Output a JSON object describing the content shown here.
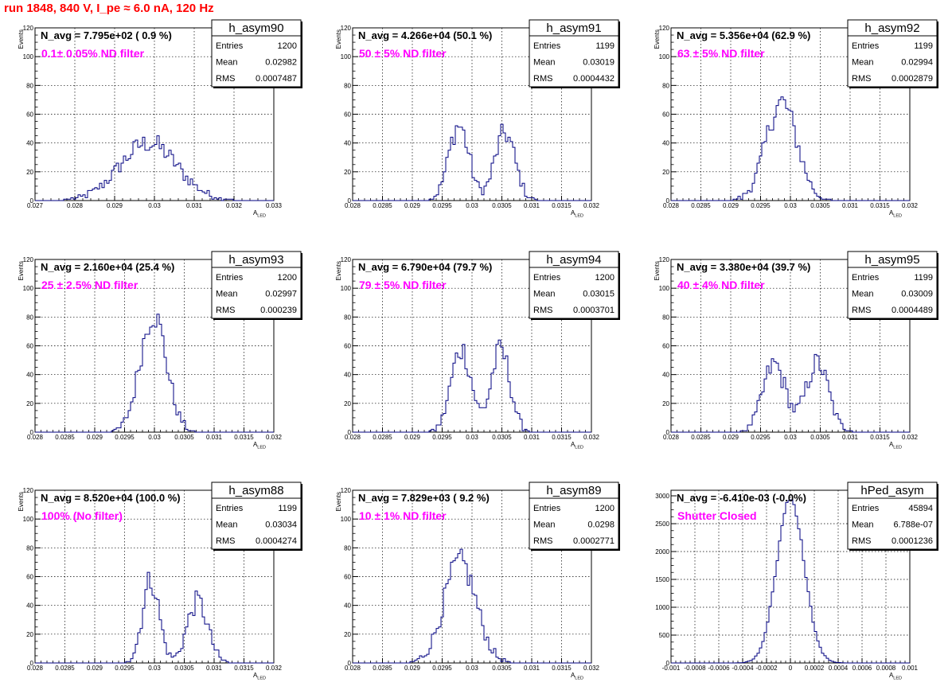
{
  "run_title": "run 1848,   840 V, I_pe ≈ 6.0 nA, 120 Hz",
  "colors": {
    "histogram": "#000080",
    "annotation": "#ff00ff",
    "title": "#ff0000",
    "grid": "#000000"
  },
  "chart_data": [
    {
      "type": "histogram",
      "name": "h_asym90",
      "navg": "N_avg = 7.795e+02 ( 0.9 %)",
      "filter": "0.1± 0.05% ND filter",
      "stats": {
        "Entries": "1200",
        "Mean": "0.02982",
        "RMS": "0.0007487"
      },
      "xlabel": "A",
      "xlabel_sub": "LED",
      "ylabel": "Events",
      "xlim": [
        0.027,
        0.033
      ],
      "ylim": [
        0,
        120
      ],
      "xticks": [
        0.027,
        0.028,
        0.029,
        0.03,
        0.031,
        0.032,
        0.033
      ],
      "xticklabels": [
        "0.027",
        "0.028",
        "0.029",
        "0.03",
        "0.031",
        "0.032",
        "0.033"
      ],
      "yticks": [
        0,
        20,
        40,
        60,
        80,
        100,
        120
      ],
      "yticklabels": [
        "0",
        "20",
        "40",
        "60",
        "80",
        "100",
        "120"
      ],
      "peaks": [
        {
          "mu": 0.02985,
          "sigma": 0.00072,
          "amp": 40
        }
      ],
      "entries": 1200
    },
    {
      "type": "histogram",
      "name": "h_asym91",
      "navg": "N_avg = 4.266e+04 (50.1 %)",
      "filter": " 50 ± 5% ND filter",
      "stats": {
        "Entries": "1199",
        "Mean": "0.03019",
        "RMS": "0.0004432"
      },
      "xlabel": "A",
      "xlabel_sub": "LED",
      "ylabel": "Events",
      "xlim": [
        0.028,
        0.032
      ],
      "ylim": [
        0,
        120
      ],
      "xticks": [
        0.028,
        0.0285,
        0.029,
        0.0295,
        0.03,
        0.0305,
        0.031,
        0.0315,
        0.032
      ],
      "xticklabels": [
        "0.028",
        "0.0285",
        "0.029",
        "0.0295",
        "0.03",
        "0.0305",
        "0.031",
        "0.0315",
        "0.032"
      ],
      "yticks": [
        0,
        20,
        40,
        60,
        80,
        100,
        120
      ],
      "yticklabels": [
        "0",
        "20",
        "40",
        "60",
        "80",
        "100",
        "120"
      ],
      "peaks": [
        {
          "mu": 0.02978,
          "sigma": 0.00017,
          "amp": 52
        },
        {
          "mu": 0.03055,
          "sigma": 0.00017,
          "amp": 47
        }
      ],
      "entries": 1199
    },
    {
      "type": "histogram",
      "name": "h_asym92",
      "navg": "N_avg = 5.356e+04 (62.9 %)",
      "filter": " 63 ± 5% ND filter",
      "stats": {
        "Entries": "1199",
        "Mean": "0.02994",
        "RMS": "0.0002879"
      },
      "xlabel": "A",
      "xlabel_sub": "LED",
      "ylabel": "Events",
      "xlim": [
        0.028,
        0.032
      ],
      "ylim": [
        0,
        120
      ],
      "xticks": [
        0.028,
        0.0285,
        0.029,
        0.0295,
        0.03,
        0.0305,
        0.031,
        0.0315,
        0.032
      ],
      "xticklabels": [
        "0.028",
        "0.0285",
        "0.029",
        "0.0295",
        "0.03",
        "0.0305",
        "0.031",
        "0.0315",
        "0.032"
      ],
      "yticks": [
        0,
        20,
        40,
        60,
        80,
        100,
        120
      ],
      "yticklabels": [
        "0",
        "20",
        "40",
        "60",
        "80",
        "100",
        "120"
      ],
      "peaks": [
        {
          "mu": 0.02985,
          "sigma": 0.00026,
          "amp": 68
        }
      ],
      "entries": 1199
    },
    {
      "type": "histogram",
      "name": "h_asym93",
      "navg": "N_avg = 2.160e+04 (25.4 %)",
      "filter": " 25 ± 2.5% ND filter",
      "stats": {
        "Entries": "1200",
        "Mean": "0.02997",
        "RMS": "0.000239"
      },
      "xlabel": "A",
      "xlabel_sub": "LED",
      "ylabel": "Events",
      "xlim": [
        0.028,
        0.032
      ],
      "ylim": [
        0,
        120
      ],
      "xticks": [
        0.028,
        0.0285,
        0.029,
        0.0295,
        0.03,
        0.0305,
        0.031,
        0.0315,
        0.032
      ],
      "xticklabels": [
        "0.028",
        "0.0285",
        "0.029",
        "0.0295",
        "0.03",
        "0.0305",
        "0.031",
        "0.0315",
        "0.032"
      ],
      "yticks": [
        0,
        20,
        40,
        60,
        80,
        100,
        120
      ],
      "yticklabels": [
        "0",
        "20",
        "40",
        "60",
        "80",
        "100",
        "120"
      ],
      "peaks": [
        {
          "mu": 0.02998,
          "sigma": 0.00022,
          "amp": 82
        }
      ],
      "entries": 1200
    },
    {
      "type": "histogram",
      "name": "h_asym94",
      "navg": "N_avg = 6.790e+04 (79.7 %)",
      "filter": " 79 ± 5% ND filter",
      "stats": {
        "Entries": "1200",
        "Mean": "0.03015",
        "RMS": "0.0003701"
      },
      "xlabel": "A",
      "xlabel_sub": "LED",
      "ylabel": "Events",
      "xlim": [
        0.028,
        0.032
      ],
      "ylim": [
        0,
        120
      ],
      "xticks": [
        0.028,
        0.0285,
        0.029,
        0.0295,
        0.03,
        0.0305,
        0.031,
        0.0315,
        0.032
      ],
      "xticklabels": [
        "0.028",
        "0.0285",
        "0.029",
        "0.0295",
        "0.03",
        "0.0305",
        "0.031",
        "0.0315",
        "0.032"
      ],
      "yticks": [
        0,
        20,
        40,
        60,
        80,
        100,
        120
      ],
      "yticklabels": [
        "0",
        "20",
        "40",
        "60",
        "80",
        "100",
        "120"
      ],
      "peaks": [
        {
          "mu": 0.02982,
          "sigma": 0.00017,
          "amp": 58
        },
        {
          "mu": 0.03048,
          "sigma": 0.00016,
          "amp": 57
        }
      ],
      "entries": 1200
    },
    {
      "type": "histogram",
      "name": "h_asym95",
      "navg": "N_avg = 3.380e+04 (39.7 %)",
      "filter": " 40 ± 4% ND filter",
      "stats": {
        "Entries": "1199",
        "Mean": "0.03009",
        "RMS": "0.0004489"
      },
      "xlabel": "A",
      "xlabel_sub": "LED",
      "ylabel": "Events",
      "xlim": [
        0.028,
        0.032
      ],
      "ylim": [
        0,
        120
      ],
      "xticks": [
        0.028,
        0.0285,
        0.029,
        0.0295,
        0.03,
        0.0305,
        0.031,
        0.0315,
        0.032
      ],
      "xticklabels": [
        "0.028",
        "0.0285",
        "0.029",
        "0.0295",
        "0.03",
        "0.0305",
        "0.031",
        "0.0315",
        "0.032"
      ],
      "yticks": [
        0,
        20,
        40,
        60,
        80,
        100,
        120
      ],
      "yticklabels": [
        "0",
        "20",
        "40",
        "60",
        "80",
        "100",
        "120"
      ],
      "peaks": [
        {
          "mu": 0.02973,
          "sigma": 0.00019,
          "amp": 47
        },
        {
          "mu": 0.03045,
          "sigma": 0.00019,
          "amp": 48
        }
      ],
      "entries": 1199
    },
    {
      "type": "histogram",
      "name": "h_asym88",
      "navg": "N_avg = 8.520e+04 (100.0 %)",
      "filter": " 100% (No filter)",
      "stats": {
        "Entries": "1199",
        "Mean": "0.03034",
        "RMS": "0.0004274"
      },
      "xlabel": "A",
      "xlabel_sub": "LED",
      "ylabel": "Events",
      "xlim": [
        0.028,
        0.032
      ],
      "ylim": [
        0,
        120
      ],
      "xticks": [
        0.028,
        0.0285,
        0.029,
        0.0295,
        0.03,
        0.0305,
        0.031,
        0.0315,
        0.032
      ],
      "xticklabels": [
        "0.028",
        "0.0285",
        "0.029",
        "0.0295",
        "0.03",
        "0.0305",
        "0.031",
        "0.0315",
        "0.032"
      ],
      "yticks": [
        0,
        20,
        40,
        60,
        80,
        100,
        120
      ],
      "yticklabels": [
        "0",
        "20",
        "40",
        "60",
        "80",
        "100",
        "120"
      ],
      "peaks": [
        {
          "mu": 0.02994,
          "sigma": 0.00014,
          "amp": 58
        },
        {
          "mu": 0.03072,
          "sigma": 0.00017,
          "amp": 43
        }
      ],
      "entries": 1199
    },
    {
      "type": "histogram",
      "name": "h_asym89",
      "navg": "N_avg = 7.829e+03 ( 9.2 %)",
      "filter": "10 ± 1% ND filter",
      "stats": {
        "Entries": "1200",
        "Mean": "0.0298",
        "RMS": "0.0002771"
      },
      "xlabel": "A",
      "xlabel_sub": "LED",
      "ylabel": "Events",
      "xlim": [
        0.028,
        0.032
      ],
      "ylim": [
        0,
        120
      ],
      "xticks": [
        0.028,
        0.0285,
        0.029,
        0.0295,
        0.03,
        0.0305,
        0.031,
        0.0315,
        0.032
      ],
      "xticklabels": [
        "0.028",
        "0.0285",
        "0.029",
        "0.0295",
        "0.03",
        "0.0305",
        "0.031",
        "0.0315",
        "0.032"
      ],
      "yticks": [
        0,
        20,
        40,
        60,
        80,
        100,
        120
      ],
      "yticklabels": [
        "0",
        "20",
        "40",
        "60",
        "80",
        "100",
        "120"
      ],
      "peaks": [
        {
          "mu": 0.0298,
          "sigma": 0.00027,
          "amp": 70
        }
      ],
      "entries": 1200
    },
    {
      "type": "histogram",
      "name": "hPed_asym",
      "navg": "N_avg = -6.410e-03 (-0.0%)",
      "filter": "Shutter Closed",
      "stats": {
        "Entries": "45894",
        "Mean": "6.788e-07",
        "RMS": "0.0001236"
      },
      "xlabel": "A",
      "xlabel_sub": "LED",
      "ylabel": "",
      "xlim": [
        -0.001,
        0.001
      ],
      "ylim": [
        0,
        3100
      ],
      "xticks": [
        -0.001,
        -0.0008,
        -0.0006,
        -0.0004,
        -0.0002,
        0,
        0.0002,
        0.0004,
        0.0006,
        0.0008,
        0.001
      ],
      "xticklabels": [
        "-0.001",
        "-0.0008",
        "-0.0006",
        "-0.0004",
        "-0.0002",
        "0",
        "0.0002",
        "0.0004",
        "0.0006",
        "0.0008",
        "0.001"
      ],
      "yticks": [
        0,
        500,
        1000,
        1500,
        2000,
        2500,
        3000
      ],
      "yticklabels": [
        "0",
        "500",
        "1000",
        "1500",
        "2000",
        "2500",
        "3000"
      ],
      "peaks": [
        {
          "mu": 0.0,
          "sigma": 0.000115,
          "amp": 2950
        }
      ],
      "entries": 45894
    }
  ]
}
